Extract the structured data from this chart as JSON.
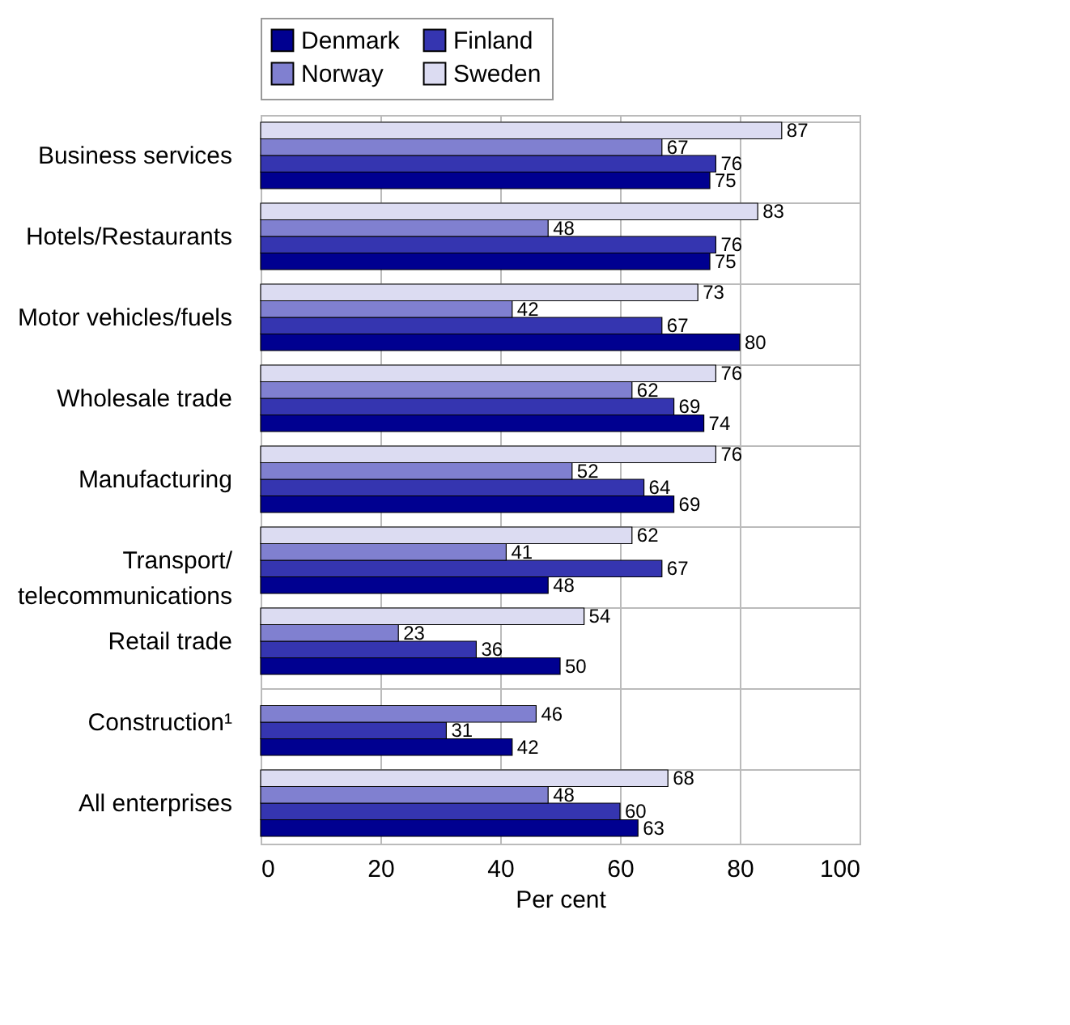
{
  "chart_data": {
    "type": "bar",
    "orientation": "horizontal",
    "xlabel": "Per cent",
    "categories": [
      "Business services",
      "Hotels/Restaurants",
      "Motor vehicles/fuels",
      "Wholesale trade",
      "Manufacturing",
      "Transport/telecommunications",
      "Retail trade",
      "Construction¹",
      "All enterprises"
    ],
    "series": [
      {
        "name": "Denmark",
        "color": "#000090",
        "values": [
          75,
          75,
          80,
          74,
          69,
          48,
          50,
          42,
          63
        ]
      },
      {
        "name": "Finland",
        "color": "#3535b0",
        "values": [
          76,
          76,
          67,
          69,
          64,
          67,
          36,
          31,
          60
        ]
      },
      {
        "name": "Norway",
        "color": "#8080d0",
        "values": [
          67,
          48,
          42,
          62,
          52,
          41,
          23,
          46,
          48
        ]
      },
      {
        "name": "Sweden",
        "color": "#dcdcf2",
        "values": [
          87,
          83,
          73,
          76,
          76,
          62,
          54,
          null,
          68
        ]
      }
    ],
    "xlim": [
      0,
      100
    ],
    "xticks": [
      0,
      20,
      40,
      60,
      80,
      100
    ],
    "grid": true,
    "legend": "top",
    "data_labels": true
  }
}
